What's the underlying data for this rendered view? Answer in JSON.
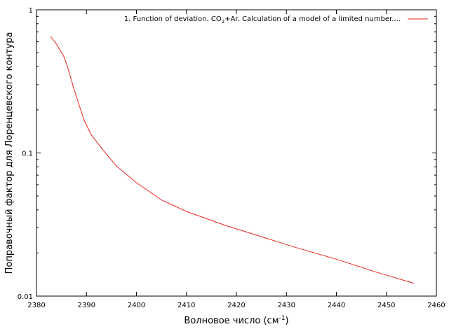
{
  "chart_data": {
    "type": "line",
    "xlabel": "Волновое число (см",
    "xlabel_sup": "-1",
    "xlabel_close": ")",
    "ylabel": "Поправочный фактор для Лоренцевского контура",
    "xlim": [
      2380,
      2460
    ],
    "ylim": [
      0.01,
      1
    ],
    "yscale": "log",
    "grid": false,
    "legend_position": "top-right",
    "xticks": [
      2380,
      2390,
      2400,
      2410,
      2420,
      2430,
      2440,
      2450,
      2460
    ],
    "xtick_labels": [
      "2380",
      "2390",
      "2400",
      "2410",
      "2420",
      "2430",
      "2440",
      "2450",
      "2460"
    ],
    "yticks": [
      0.01,
      0.1,
      1
    ],
    "ytick_labels": [
      "0.01",
      "0.1",
      "1"
    ],
    "series": [
      {
        "name": "1. Function of deviation. CO2+Ar. Calculation of a model of a limited number....",
        "name_parts": {
          "before": "1. Function of deviation. CO",
          "sub": "2",
          "after": "+Ar. Calculation of a model of a limited number...."
        },
        "color": "#e8261e",
        "x": [
          2382.8,
          2383.8,
          2385.5,
          2386.2,
          2387.5,
          2389.5,
          2391.0,
          2393.5,
          2396.0,
          2400.0,
          2405.0,
          2410.0,
          2418.0,
          2425.0,
          2432.0,
          2440.0,
          2448.0,
          2455.5
        ],
        "y": [
          0.65,
          0.59,
          0.47,
          0.4,
          0.28,
          0.17,
          0.133,
          0.103,
          0.081,
          0.062,
          0.047,
          0.039,
          0.031,
          0.026,
          0.0218,
          0.0181,
          0.0147,
          0.0123
        ]
      }
    ]
  }
}
